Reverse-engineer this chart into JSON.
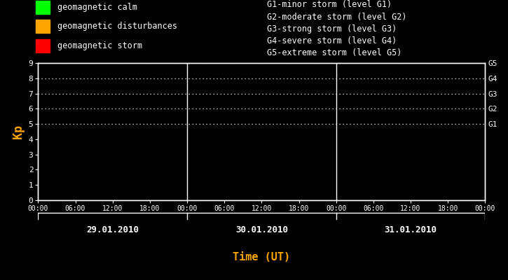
{
  "bg_color": "#000000",
  "fg_color": "#ffffff",
  "orange_color": "#ffa500",
  "title_x_label": "Time (UT)",
  "ylabel": "Kp",
  "ylim": [
    0,
    9
  ],
  "yticks": [
    0,
    1,
    2,
    3,
    4,
    5,
    6,
    7,
    8,
    9
  ],
  "days": [
    "29.01.2010",
    "30.01.2010",
    "31.01.2010"
  ],
  "legend_items": [
    {
      "label": "geomagnetic calm",
      "color": "#00ff00"
    },
    {
      "label": "geomagnetic disturbances",
      "color": "#ffa500"
    },
    {
      "label": "geomagnetic storm",
      "color": "#ff0000"
    }
  ],
  "storm_levels": [
    "G1-minor storm (level G1)",
    "G2-moderate storm (level G2)",
    "G3-strong storm (level G3)",
    "G4-severe storm (level G4)",
    "G5-extreme storm (level G5)"
  ],
  "right_labels": [
    "G5",
    "G4",
    "G3",
    "G2",
    "G1"
  ],
  "right_y": [
    9,
    8,
    7,
    6,
    5
  ],
  "dotted_y": [
    5,
    6,
    7,
    8,
    9
  ],
  "num_days": 3,
  "hours_per_day": 24,
  "figsize": [
    7.25,
    4.0
  ],
  "dpi": 100,
  "font_family": "monospace"
}
